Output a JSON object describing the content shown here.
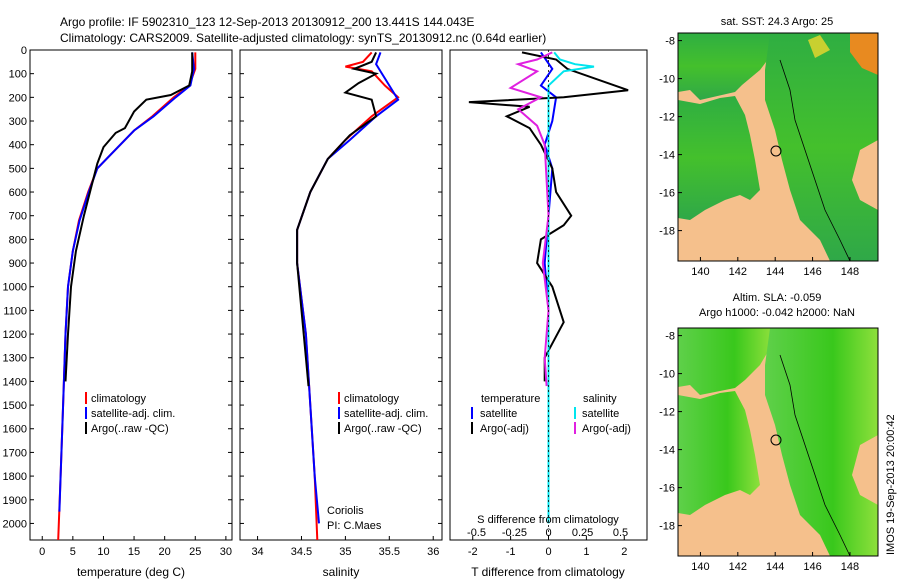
{
  "header": {
    "line1": "Argo profile: IF 5902310_123 12-Sep-2013 20130912_200 13.441S 144.043E",
    "line2": "Climatology: CARS2009. Satellite-adjusted climatology: synTS_20130912.nc (0.64d earlier)"
  },
  "stamp": "IMOS 19-Sep-2013 20:00:42",
  "colors": {
    "clim": "#ff0000",
    "sat": "#0000ff",
    "argo": "#000000",
    "sal_sat": "#00e5ee",
    "sal_argo": "#e020e0",
    "land": "#f5c08c"
  },
  "chart_data": [
    {
      "type": "line",
      "name": "temperature",
      "xlabel": "temperature (deg C)",
      "ylabel": "",
      "xlim": [
        -2,
        31
      ],
      "ylim": [
        2070,
        0
      ],
      "xticks": [
        0,
        5,
        10,
        15,
        20,
        25,
        30
      ],
      "yticks": [
        0,
        100,
        200,
        300,
        400,
        500,
        600,
        700,
        800,
        900,
        1000,
        1100,
        1200,
        1300,
        1400,
        1500,
        1600,
        1700,
        1800,
        1900,
        2000
      ],
      "legend": [
        "climatology",
        "satellite-adj. clim.",
        "Argo(..raw -QC)"
      ],
      "series": [
        {
          "name": "climatology",
          "color": "#ff0000",
          "points": [
            [
              25,
              10
            ],
            [
              25,
              80
            ],
            [
              24,
              150
            ],
            [
              21.5,
              200
            ],
            [
              18,
              280
            ],
            [
              15,
              340
            ],
            [
              12,
              420
            ],
            [
              9,
              500
            ],
            [
              7.5,
              600
            ],
            [
              6,
              720
            ],
            [
              5,
              850
            ],
            [
              4.2,
              1000
            ],
            [
              3.8,
              1200
            ],
            [
              3.4,
              1500
            ],
            [
              3,
              1800
            ],
            [
              2.6,
              2070
            ]
          ]
        },
        {
          "name": "satellite-adj. clim.",
          "color": "#0000ff",
          "points": [
            [
              24.5,
              10
            ],
            [
              24.8,
              80
            ],
            [
              24.2,
              150
            ],
            [
              21.8,
              200
            ],
            [
              18.2,
              280
            ],
            [
              15,
              340
            ],
            [
              12,
              420
            ],
            [
              9,
              500
            ],
            [
              7.6,
              600
            ],
            [
              6.1,
              720
            ],
            [
              5,
              850
            ],
            [
              4.2,
              1000
            ],
            [
              3.8,
              1200
            ],
            [
              3.4,
              1500
            ],
            [
              3,
              1800
            ],
            [
              2.8,
              1950
            ]
          ]
        },
        {
          "name": "Argo(..raw -QC)",
          "color": "#000000",
          "points": [
            [
              24.5,
              10
            ],
            [
              24.5,
              90
            ],
            [
              24,
              150
            ],
            [
              21,
              190
            ],
            [
              17,
              210
            ],
            [
              15,
              260
            ],
            [
              13.5,
              330
            ],
            [
              12,
              350
            ],
            [
              10,
              410
            ],
            [
              9,
              480
            ],
            [
              8,
              580
            ],
            [
              6.8,
              700
            ],
            [
              5.5,
              850
            ],
            [
              4.7,
              1000
            ],
            [
              4.2,
              1200
            ],
            [
              3.8,
              1400
            ]
          ]
        }
      ]
    },
    {
      "type": "line",
      "name": "salinity",
      "xlabel": "salinity",
      "ylabel": "",
      "xlim": [
        33.8,
        36.1
      ],
      "ylim": [
        2070,
        0
      ],
      "xticks": [
        34,
        34.5,
        35,
        35.5,
        36
      ],
      "yticks": [
        0,
        100,
        200,
        300,
        400,
        500,
        600,
        700,
        800,
        900,
        1000,
        1100,
        1200,
        1300,
        1400,
        1500,
        1600,
        1700,
        1800,
        1900,
        2000
      ],
      "legend": [
        "climatology",
        "satellite-adj. clim.",
        "Argo(..raw -QC)"
      ],
      "annotation": [
        "Coriolis",
        "PI: C.Maes"
      ],
      "series": [
        {
          "name": "climatology",
          "color": "#ff0000",
          "points": [
            [
              35.3,
              10
            ],
            [
              35.2,
              50
            ],
            [
              35.0,
              70
            ],
            [
              35.3,
              90
            ],
            [
              35.45,
              150
            ],
            [
              35.6,
              200
            ],
            [
              35.3,
              280
            ],
            [
              35.0,
              380
            ],
            [
              34.8,
              460
            ],
            [
              34.6,
              600
            ],
            [
              34.45,
              760
            ],
            [
              34.45,
              900
            ],
            [
              34.55,
              1200
            ],
            [
              34.6,
              1500
            ],
            [
              34.65,
              1800
            ],
            [
              34.68,
              2070
            ]
          ]
        },
        {
          "name": "satellite-adj. clim.",
          "color": "#0000ff",
          "points": [
            [
              35.4,
              10
            ],
            [
              35.35,
              60
            ],
            [
              35.45,
              120
            ],
            [
              35.55,
              180
            ],
            [
              35.6,
              210
            ],
            [
              35.35,
              280
            ],
            [
              35.05,
              380
            ],
            [
              34.8,
              460
            ],
            [
              34.6,
              600
            ],
            [
              34.45,
              760
            ],
            [
              34.45,
              900
            ],
            [
              34.55,
              1200
            ],
            [
              34.6,
              1500
            ],
            [
              34.65,
              1800
            ],
            [
              34.7,
              2000
            ]
          ]
        },
        {
          "name": "Argo(..raw -QC)",
          "color": "#000000",
          "points": [
            [
              35.35,
              10
            ],
            [
              35.3,
              50
            ],
            [
              35.1,
              80
            ],
            [
              35.35,
              100
            ],
            [
              35.15,
              140
            ],
            [
              35.0,
              180
            ],
            [
              35.3,
              210
            ],
            [
              35.35,
              280
            ],
            [
              35.05,
              360
            ],
            [
              34.8,
              460
            ],
            [
              34.6,
              600
            ],
            [
              34.45,
              760
            ],
            [
              34.45,
              900
            ],
            [
              34.5,
              1100
            ],
            [
              34.55,
              1300
            ],
            [
              34.58,
              1420
            ]
          ]
        }
      ]
    },
    {
      "type": "line",
      "name": "difference",
      "xlabel": "T difference from climatology",
      "xlabel_top": "S difference from climatology",
      "xlim": [
        -2.6,
        2.6
      ],
      "ylim": [
        2070,
        0
      ],
      "xticks_T": [
        -2,
        -1,
        0,
        1,
        2
      ],
      "xticks_S": [
        -0.5,
        -0.25,
        0,
        0.25,
        0.5
      ],
      "legend_groups": [
        {
          "title": "temperature",
          "items": [
            "satellite",
            "Argo(-adj)"
          ]
        },
        {
          "title": "salinity",
          "items": [
            "satellite",
            "Argo(-adj)"
          ]
        }
      ],
      "series": [
        {
          "name": "temperature satellite",
          "color": "#0000ff",
          "points": [
            [
              -0.2,
              10
            ],
            [
              0.1,
              80
            ],
            [
              -0.2,
              150
            ],
            [
              0.2,
              200
            ],
            [
              0.1,
              300
            ],
            [
              -0.1,
              400
            ],
            [
              0.1,
              500
            ],
            [
              0,
              700
            ],
            [
              -0.1,
              900
            ],
            [
              0,
              1100
            ],
            [
              0,
              1400
            ]
          ]
        },
        {
          "name": "temperature Argo(-adj)",
          "color": "#000000",
          "points": [
            [
              -0.7,
              10
            ],
            [
              0.2,
              40
            ],
            [
              0.5,
              80
            ],
            [
              2.1,
              170
            ],
            [
              0.4,
              200
            ],
            [
              -2.1,
              220
            ],
            [
              -0.5,
              240
            ],
            [
              -1.1,
              280
            ],
            [
              -0.5,
              330
            ],
            [
              -0.2,
              400
            ],
            [
              0.1,
              500
            ],
            [
              0.2,
              600
            ],
            [
              0.6,
              700
            ],
            [
              0.4,
              740
            ],
            [
              -0.2,
              800
            ],
            [
              -0.3,
              900
            ],
            [
              0.1,
              1000
            ],
            [
              0.4,
              1150
            ],
            [
              -0.1,
              1300
            ],
            [
              -0.1,
              1400
            ]
          ]
        },
        {
          "name": "salinity satellite",
          "color": "#00e5ee",
          "points": [
            [
              0.15,
              10
            ],
            [
              0.3,
              40
            ],
            [
              0.7,
              60
            ],
            [
              1.2,
              70
            ],
            [
              0.4,
              90
            ],
            [
              0,
              150
            ],
            [
              0,
              300
            ],
            [
              0,
              600
            ],
            [
              0,
              1000
            ],
            [
              0,
              1500
            ],
            [
              0,
              2000
            ]
          ]
        },
        {
          "name": "salinity Argo(-adj)",
          "color": "#e020e0",
          "points": [
            [
              0.1,
              10
            ],
            [
              -0.3,
              40
            ],
            [
              -0.8,
              60
            ],
            [
              -0.3,
              90
            ],
            [
              -1.0,
              160
            ],
            [
              -0.2,
              200
            ],
            [
              -0.8,
              250
            ],
            [
              -0.3,
              320
            ],
            [
              -0.1,
              400
            ],
            [
              0,
              700
            ],
            [
              -0.15,
              900
            ],
            [
              0,
              1100
            ],
            [
              -0.1,
              1300
            ],
            [
              -0.05,
              1420
            ]
          ]
        }
      ]
    }
  ],
  "maps": [
    {
      "title": "sat. SST: 24.3 Argo: 25",
      "xticks": [
        "140",
        "142",
        "144",
        "146",
        "148"
      ],
      "yticks": [
        "-8",
        "-10",
        "-12",
        "-14",
        "-16",
        "-18"
      ]
    },
    {
      "title1": "Altim. SLA: -0.059",
      "title2": "Argo h1000: -0.042 h2000: NaN",
      "xticks": [
        "140",
        "142",
        "144",
        "146",
        "148"
      ],
      "yticks": [
        "-8",
        "-10",
        "-12",
        "-14",
        "-16",
        "-18"
      ]
    }
  ]
}
